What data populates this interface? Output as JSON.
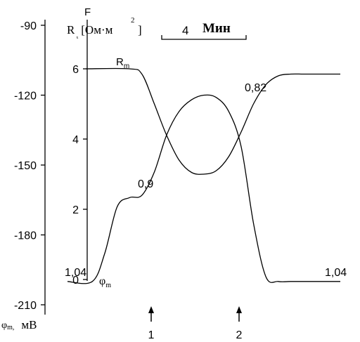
{
  "chart_data": {
    "type": "line",
    "left_axis": {
      "label": "φm, мВ",
      "label_symbol": "φ",
      "label_subscript": "m,",
      "label_unit": "мВ",
      "ticks": [
        "-90",
        "-120",
        "-150",
        "-180",
        "-210"
      ],
      "range": [
        -210,
        -90
      ]
    },
    "right_axis": {
      "label_symbol": "R",
      "label_unit": "[Ом·м",
      "label_power": "2",
      "label_close": "]",
      "top_letter": "F",
      "ticks": [
        "6",
        "4",
        "2",
        "0"
      ],
      "range": [
        0,
        6
      ]
    },
    "scale_bar": {
      "value": "4",
      "unit": "Мин"
    },
    "series": [
      {
        "name": "Rm",
        "label_main": "R",
        "label_sub": "m",
        "x": [
          0,
          10,
          12,
          14,
          16,
          18,
          20,
          22,
          24,
          26,
          28,
          30,
          32,
          34,
          36,
          38,
          40,
          42,
          44
        ],
        "values": [
          6,
          6,
          5.85,
          5.0,
          4.1,
          3.4,
          3.05,
          3.0,
          3.1,
          3.5,
          4.2,
          5.0,
          5.55,
          5.8,
          5.85,
          5.85,
          5.85,
          5.85,
          5.85
        ]
      },
      {
        "name": "φm",
        "label_main": "φ",
        "label_sub": "m",
        "x": [
          0,
          4,
          6,
          8,
          10,
          12,
          14,
          16,
          18,
          20,
          22,
          24,
          26,
          28,
          30,
          32,
          34,
          36,
          38,
          40,
          44
        ],
        "values": [
          -200,
          -200,
          -188,
          -168,
          -164,
          -163,
          -153,
          -137,
          -127,
          -122,
          -120,
          -121,
          -127,
          -142,
          -175,
          -198,
          -200,
          -200,
          -200,
          -200,
          -200
        ]
      }
    ],
    "annotations": [
      {
        "text": "1,04",
        "anchor": "left-end"
      },
      {
        "text": "0,9",
        "anchor": "first-plateau"
      },
      {
        "text": "0,82",
        "anchor": "peak"
      },
      {
        "text": "1,04",
        "anchor": "right-end"
      }
    ],
    "markers": [
      {
        "label": "1",
        "x": 14
      },
      {
        "label": "2",
        "x": 24
      }
    ]
  }
}
